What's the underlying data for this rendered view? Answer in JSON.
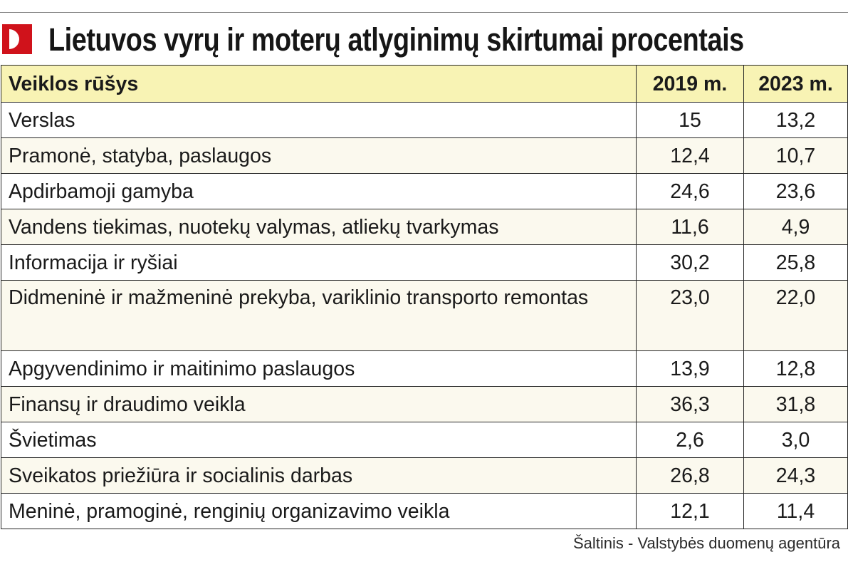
{
  "header": {
    "title": "Lietuvos vyrų ir moterų atlyginimų skirtumai procentais",
    "logo_icon": "d-logo-icon",
    "accent": "#d0121b"
  },
  "chart_data": {
    "type": "table",
    "title": "Lietuvos vyrų ir moterų atlyginimų skirtumai procentais",
    "columns": [
      "Veiklos rūšys",
      "2019 m.",
      "2023 m."
    ],
    "rows": [
      [
        "Verslas",
        "15",
        "13,2"
      ],
      [
        "Pramonė, statyba, paslaugos",
        "12,4",
        "10,7"
      ],
      [
        "Apdirbamoji gamyba",
        "24,6",
        "23,6"
      ],
      [
        "Vandens tiekimas, nuotekų valymas, atliekų tvarkymas",
        "11,6",
        "4,9"
      ],
      [
        "Informacija ir ryšiai",
        "30,2",
        "25,8"
      ],
      [
        "Didmeninė ir mažmeninė prekyba, variklinio transporto remontas",
        "23,0",
        "22,0"
      ],
      [
        "Apgyvendinimo ir maitinimo paslaugos",
        "13,9",
        "12,8"
      ],
      [
        "Finansų ir draudimo veikla",
        "36,3",
        "31,8"
      ],
      [
        "Švietimas",
        "2,6",
        "3,0"
      ],
      [
        "Sveikatos priežiūra ir socialinis darbas",
        "26,8",
        "24,3"
      ],
      [
        "Meninė, pramoginė, renginių organizavimo veikla",
        "12,1",
        "11,4"
      ]
    ],
    "header_color": "#f8f3b4",
    "stripe_color": "#fbf9ee"
  },
  "footer": {
    "source": "Šaltinis - Valstybės duomenų agentūra"
  }
}
